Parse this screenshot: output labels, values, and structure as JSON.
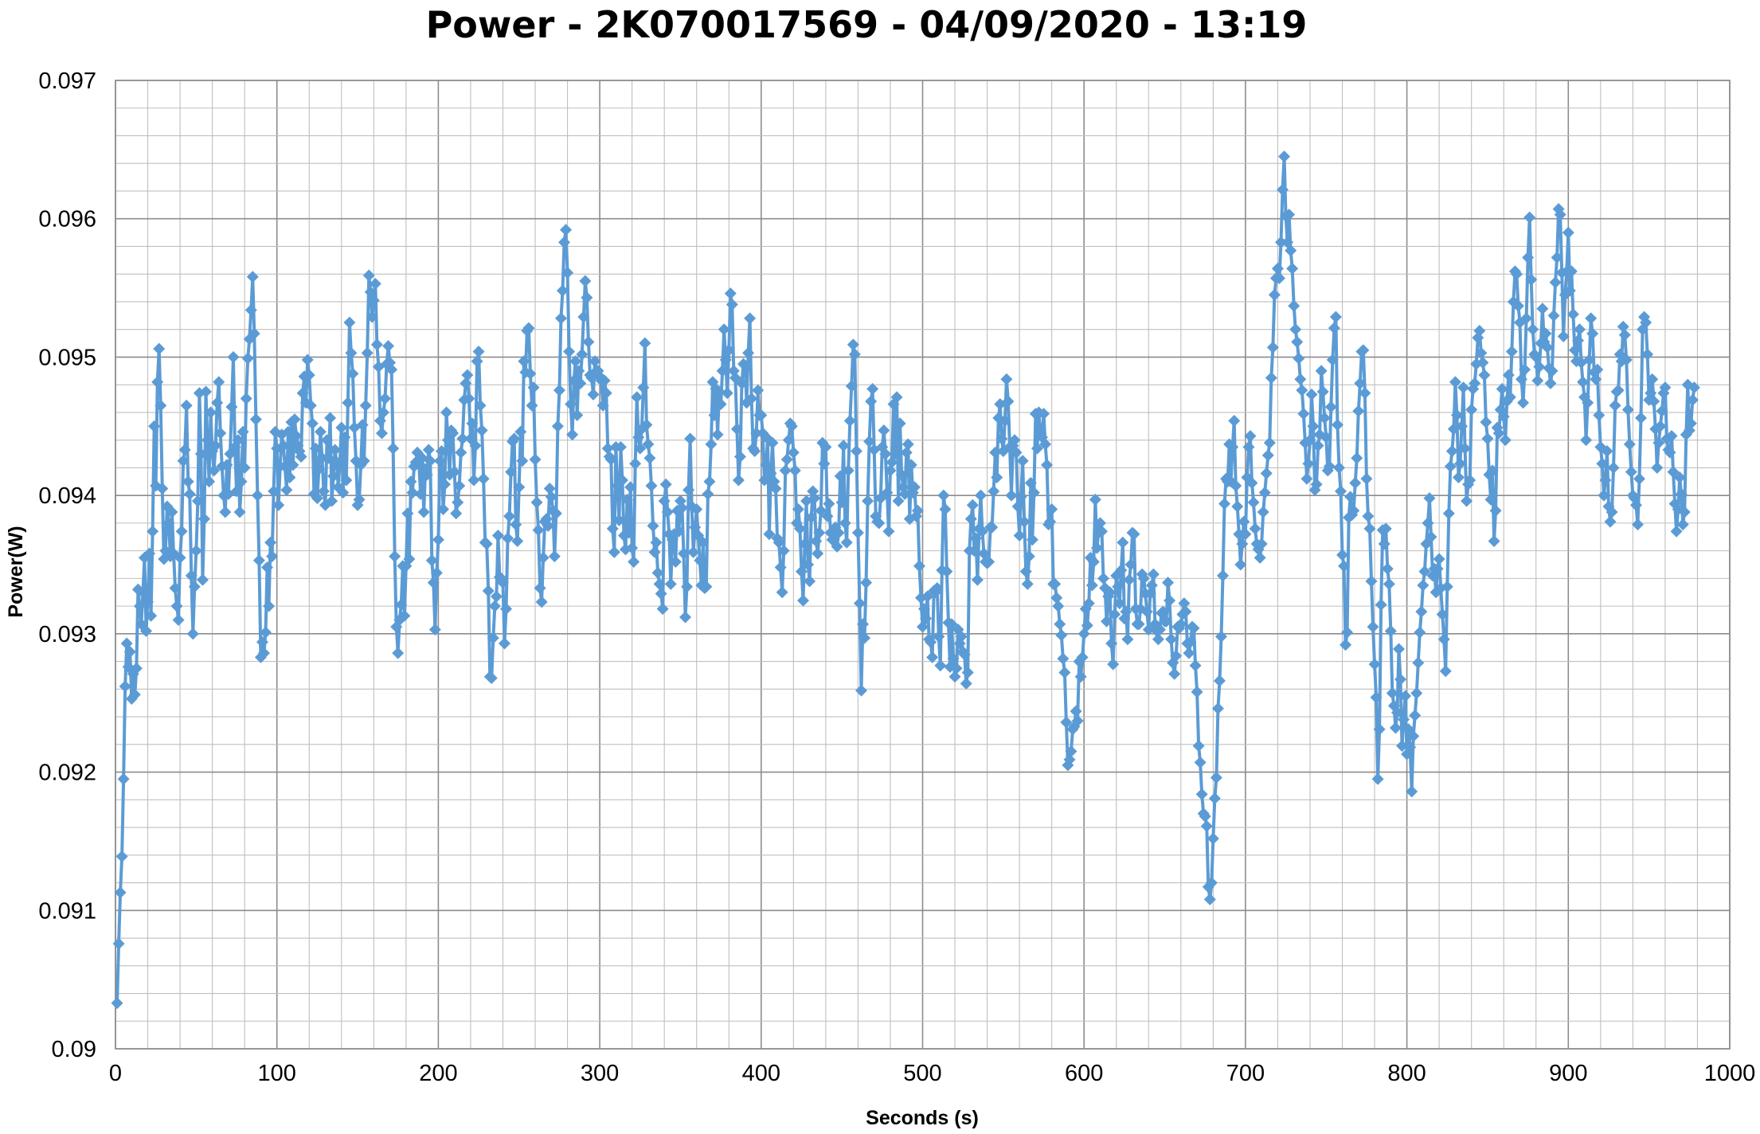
{
  "chart_data": {
    "type": "line",
    "title": "Power - 2K070017569 - 04/09/2020 - 13:19",
    "xlabel": "Seconds (s)",
    "ylabel": "Power(W)",
    "xlim": [
      0,
      1000
    ],
    "ylim": [
      0.09,
      0.097
    ],
    "x_ticks": [
      0,
      100,
      200,
      300,
      400,
      500,
      600,
      700,
      800,
      900,
      1000
    ],
    "y_ticks": [
      "0.09",
      "0.091",
      "0.092",
      "0.093",
      "0.094",
      "0.095",
      "0.096",
      "0.097"
    ],
    "x_step": 1,
    "x_start": 1,
    "grid": true,
    "marker": "diamond",
    "series_color": "#5b9bd5",
    "series": [
      {
        "name": "",
        "y": [
          0.09033,
          0.09076,
          0.09113,
          0.09139,
          0.09195,
          0.09262,
          0.09293,
          0.09276,
          0.09287,
          0.09253,
          0.09271,
          0.09256,
          0.09275,
          0.09332,
          0.0932,
          0.09307,
          0.0933,
          0.09355,
          0.09302,
          0.09323,
          0.09358,
          0.09313,
          0.09374,
          0.0945,
          0.09407,
          0.09482,
          0.09506,
          0.09465,
          0.09405,
          0.09354,
          0.0936,
          0.09392,
          0.0938,
          0.09356,
          0.09388,
          0.09358,
          0.09333,
          0.0932,
          0.0931,
          0.09355,
          0.09374,
          0.09425,
          0.09433,
          0.09465,
          0.0941,
          0.09401,
          0.09342,
          0.093,
          0.09334,
          0.0936,
          0.09396,
          0.09474,
          0.0943,
          0.09339,
          0.09383,
          0.09475,
          0.0944,
          0.0941,
          0.0946,
          0.09432,
          0.09418,
          0.09436,
          0.09467,
          0.09482,
          0.09445,
          0.09421,
          0.094,
          0.09388,
          0.09422,
          0.09401,
          0.0943,
          0.09464,
          0.095,
          0.09435,
          0.09403,
          0.0944,
          0.09388,
          0.0941,
          0.09446,
          0.0942,
          0.0947,
          0.09499,
          0.09513,
          0.09534,
          0.09558,
          0.09517,
          0.09455,
          0.094,
          0.09353,
          0.09283,
          0.09294,
          0.09286,
          0.09301,
          0.09348,
          0.0932,
          0.09366,
          0.09356,
          0.09403,
          0.09446,
          0.09434,
          0.09393,
          0.09421,
          0.09444,
          0.09436,
          0.09421,
          0.09404,
          0.09446,
          0.09413,
          0.09453,
          0.09422,
          0.09455,
          0.09443,
          0.09436,
          0.09432,
          0.09428,
          0.09474,
          0.09486,
          0.09467,
          0.09498,
          0.09487,
          0.09465,
          0.09452,
          0.09401,
          0.09434,
          0.09398,
          0.09419,
          0.09446,
          0.09427,
          0.09403,
          0.09393,
          0.0944,
          0.09427,
          0.09456,
          0.09396,
          0.09414,
          0.09433,
          0.09424,
          0.09406,
          0.09424,
          0.09449,
          0.09402,
          0.09442,
          0.09411,
          0.09467,
          0.09525,
          0.09503,
          0.09488,
          0.09449,
          0.09425,
          0.09393,
          0.09397,
          0.09422,
          0.09451,
          0.09425,
          0.09465,
          0.09503,
          0.09559,
          0.09547,
          0.09529,
          0.09541,
          0.09553,
          0.09509,
          0.09493,
          0.09454,
          0.09445,
          0.0946,
          0.0947,
          0.09495,
          0.09508,
          0.09496,
          0.09491,
          0.09434,
          0.09356,
          0.09305,
          0.09286,
          0.0931,
          0.09321,
          0.09349,
          0.09313,
          0.09349,
          0.09387,
          0.09354,
          0.0941,
          0.09402,
          0.09421,
          0.09424,
          0.09431,
          0.09423,
          0.09401,
          0.09427,
          0.09388,
          0.09419,
          0.09415,
          0.09433,
          0.09425,
          0.09353,
          0.09337,
          0.09303,
          0.09344,
          0.09368,
          0.09425,
          0.09432,
          0.0939,
          0.09408,
          0.0946,
          0.0944,
          0.09415,
          0.09447,
          0.09445,
          0.09417,
          0.09387,
          0.09395,
          0.09407,
          0.09431,
          0.09441,
          0.09469,
          0.09481,
          0.09487,
          0.0947,
          0.09441,
          0.09452,
          0.09411,
          0.09436,
          0.09497,
          0.09504,
          0.09465,
          0.09447,
          0.09412,
          0.09366,
          0.09365,
          0.09331,
          0.09269,
          0.09268,
          0.09297,
          0.0932,
          0.09327,
          0.09371,
          0.09341,
          0.0934,
          0.09337,
          0.09293,
          0.09318,
          0.09369,
          0.09385,
          0.09417,
          0.09439,
          0.09441,
          0.09379,
          0.09367,
          0.09406,
          0.09446,
          0.09425,
          0.09497,
          0.09489,
          0.09519,
          0.09521,
          0.09488,
          0.09465,
          0.09478,
          0.09426,
          0.09395,
          0.09375,
          0.09333,
          0.09323,
          0.09355,
          0.09381,
          0.09383,
          0.09378,
          0.09405,
          0.09399,
          0.09389,
          0.09356,
          0.09387,
          0.0945,
          0.09476,
          0.09528,
          0.09548,
          0.09583,
          0.09592,
          0.09561,
          0.09504,
          0.09466,
          0.09444,
          0.09483,
          0.09497,
          0.09458,
          0.0949,
          0.09481,
          0.09502,
          0.09529,
          0.09555,
          0.09543,
          0.09511,
          0.09487,
          0.09485,
          0.09473,
          0.09497,
          0.0949,
          0.0949,
          0.09486,
          0.09483,
          0.09465,
          0.09483,
          0.09474,
          0.09434,
          0.09428,
          0.09426,
          0.09376,
          0.09359,
          0.09435,
          0.09407,
          0.09382,
          0.09435,
          0.09411,
          0.09371,
          0.09361,
          0.09397,
          0.09373,
          0.09406,
          0.09362,
          0.09352,
          0.09423,
          0.09471,
          0.09442,
          0.09434,
          0.09448,
          0.09478,
          0.0951,
          0.09451,
          0.09437,
          0.09427,
          0.09407,
          0.09378,
          0.09359,
          0.09366,
          0.09344,
          0.09336,
          0.09329,
          0.09318,
          0.09396,
          0.09408,
          0.09388,
          0.09372,
          0.09336,
          0.09368,
          0.09372,
          0.09352,
          0.09389,
          0.09374,
          0.09396,
          0.09391,
          0.09358,
          0.09312,
          0.09334,
          0.09404,
          0.09441,
          0.09392,
          0.09359,
          0.09377,
          0.0939,
          0.09371,
          0.09353,
          0.09335,
          0.09366,
          0.09333,
          0.09334,
          0.09401,
          0.0941,
          0.09437,
          0.09482,
          0.09458,
          0.09477,
          0.09444,
          0.09475,
          0.09466,
          0.0949,
          0.0952,
          0.09498,
          0.09474,
          0.09505,
          0.09546,
          0.09538,
          0.0949,
          0.09485,
          0.09448,
          0.09411,
          0.09428,
          0.09481,
          0.09495,
          0.09494,
          0.09467,
          0.09503,
          0.09528,
          0.0947,
          0.09434,
          0.09432,
          0.09445,
          0.09476,
          0.09458,
          0.09458,
          0.09445,
          0.09411,
          0.09422,
          0.09441,
          0.09372,
          0.09416,
          0.09438,
          0.0941,
          0.09405,
          0.09369,
          0.09366,
          0.09348,
          0.0933,
          0.0936,
          0.09418,
          0.09426,
          0.0944,
          0.09452,
          0.0945,
          0.09431,
          0.09418,
          0.0938,
          0.0939,
          0.09376,
          0.09345,
          0.09324,
          0.09365,
          0.09396,
          0.0935,
          0.09338,
          0.09384,
          0.09403,
          0.09398,
          0.09367,
          0.09358,
          0.09373,
          0.09389,
          0.09438,
          0.09423,
          0.09435,
          0.09385,
          0.09394,
          0.09373,
          0.09368,
          0.09368,
          0.09377,
          0.09363,
          0.09373,
          0.09414,
          0.09395,
          0.09436,
          0.0938,
          0.09366,
          0.09418,
          0.09454,
          0.09479,
          0.09509,
          0.09502,
          0.09432,
          0.09373,
          0.09322,
          0.09259,
          0.09307,
          0.09297,
          0.09337,
          0.09396,
          0.09439,
          0.09468,
          0.09477,
          0.09433,
          0.09385,
          0.09381,
          0.0938,
          0.09398,
          0.09435,
          0.09447,
          0.0943,
          0.09402,
          0.09374,
          0.09418,
          0.09424,
          0.09466,
          0.0943,
          0.09471,
          0.09396,
          0.09452,
          0.09415,
          0.09406,
          0.09401,
          0.09431,
          0.09437,
          0.09383,
          0.09422,
          0.09402,
          0.09406,
          0.09385,
          0.09389,
          0.09349,
          0.09326,
          0.09305,
          0.09318,
          0.09311,
          0.09327,
          0.09296,
          0.09294,
          0.09283,
          0.09331,
          0.0933,
          0.09333,
          0.09298,
          0.09277,
          0.09346,
          0.094,
          0.0939,
          0.09345,
          0.09308,
          0.09276,
          0.09307,
          0.09282,
          0.09269,
          0.09275,
          0.09303,
          0.09293,
          0.09298,
          0.09287,
          0.09285,
          0.09264,
          0.09272,
          0.0936,
          0.09383,
          0.09393,
          0.0936,
          0.09369,
          0.09339,
          0.09376,
          0.094,
          0.09374,
          0.09358,
          0.09352,
          0.09351,
          0.09352,
          0.09377,
          0.09377,
          0.09403,
          0.09431,
          0.09413,
          0.09456,
          0.09466,
          0.09441,
          0.09432,
          0.09454,
          0.09484,
          0.09468,
          0.09435,
          0.094,
          0.09436,
          0.0944,
          0.09431,
          0.09392,
          0.09371,
          0.09399,
          0.09425,
          0.09381,
          0.09345,
          0.09336,
          0.09356,
          0.09409,
          0.09368,
          0.09402,
          0.09459,
          0.09434,
          0.0946,
          0.09445,
          0.09442,
          0.09459,
          0.09437,
          0.09422,
          0.09379,
          0.09381,
          0.0939,
          0.09336,
          0.09336,
          0.09326,
          0.0932,
          0.09307,
          0.09299,
          0.09282,
          0.09272,
          0.09236,
          0.09205,
          0.09209,
          0.09215,
          0.09231,
          0.09233,
          0.09244,
          0.09237,
          0.0928,
          0.09269,
          0.09283,
          0.093,
          0.09318,
          0.09306,
          0.09322,
          0.09355,
          0.09335,
          0.09352,
          0.09397,
          0.09362,
          0.09373,
          0.0938,
          0.09374,
          0.0934,
          0.09333,
          0.09309,
          0.09327,
          0.0933,
          0.09293,
          0.09278,
          0.09314,
          0.09342,
          0.09334,
          0.09322,
          0.09346,
          0.09366,
          0.09311,
          0.09316,
          0.09296,
          0.09339,
          0.0935,
          0.09373,
          0.09372,
          0.09318,
          0.09307,
          0.09307,
          0.09318,
          0.09343,
          0.0934,
          0.09329,
          0.09316,
          0.09303,
          0.09329,
          0.09335,
          0.09343,
          0.09307,
          0.09302,
          0.09296,
          0.09303,
          0.09315,
          0.09316,
          0.09309,
          0.09309,
          0.09337,
          0.09324,
          0.09296,
          0.09279,
          0.09271,
          0.09284,
          0.09305,
          0.09304,
          0.09307,
          0.09314,
          0.09322,
          0.09316,
          0.09293,
          0.09286,
          0.09294,
          0.09305,
          0.09304,
          0.09277,
          0.09258,
          0.09219,
          0.09207,
          0.09184,
          0.0917,
          0.09168,
          0.09161,
          0.09117,
          0.09108,
          0.0912,
          0.09152,
          0.09181,
          0.09196,
          0.09246,
          0.09266,
          0.09298,
          0.09342,
          0.09394,
          0.09412,
          0.0941,
          0.09437,
          0.0941,
          0.09435,
          0.09454,
          0.09407,
          0.09392,
          0.09372,
          0.0935,
          0.09365,
          0.09381,
          0.09372,
          0.09413,
          0.09435,
          0.09443,
          0.09409,
          0.09395,
          0.09376,
          0.09365,
          0.09361,
          0.09355,
          0.09365,
          0.09388,
          0.09402,
          0.09416,
          0.09429,
          0.09438,
          0.09485,
          0.09507,
          0.09545,
          0.09557,
          0.09564,
          0.09557,
          0.09583,
          0.09621,
          0.09645,
          0.09602,
          0.09583,
          0.09603,
          0.09577,
          0.09564,
          0.09537,
          0.0952,
          0.09511,
          0.09499,
          0.09484,
          0.09476,
          0.09459,
          0.09438,
          0.09412,
          0.09423,
          0.0944,
          0.09473,
          0.0945,
          0.09404,
          0.09408,
          0.09436,
          0.09444,
          0.0949,
          0.09475,
          0.09456,
          0.09442,
          0.09418,
          0.09421,
          0.09464,
          0.09498,
          0.09521,
          0.09529,
          0.09451,
          0.0942,
          0.09403,
          0.09357,
          0.09349,
          0.09292,
          0.09301,
          0.09384,
          0.09399,
          0.09386,
          0.09389,
          0.09409,
          0.09427,
          0.09461,
          0.09481,
          0.09504,
          0.09505,
          0.09474,
          0.09412,
          0.09385,
          0.09376,
          0.09338,
          0.09305,
          0.09278,
          0.09254,
          0.09195,
          0.09231,
          0.09321,
          0.09375,
          0.09365,
          0.09376,
          0.09347,
          0.09336,
          0.09302,
          0.09257,
          0.09248,
          0.09232,
          0.09243,
          0.09289,
          0.09267,
          0.09219,
          0.09238,
          0.09255,
          0.09213,
          0.09231,
          0.09218,
          0.09186,
          0.09226,
          0.09241,
          0.09257,
          0.09279,
          0.09301,
          0.09316,
          0.09335,
          0.09345,
          0.09365,
          0.0938,
          0.09398,
          0.0937,
          0.09342,
          0.09347,
          0.0933,
          0.09347,
          0.09354,
          0.09333,
          0.09314,
          0.09296,
          0.09273,
          0.09334,
          0.09387,
          0.09421,
          0.09432,
          0.09448,
          0.09482,
          0.09458,
          0.09413,
          0.09423,
          0.0945,
          0.09478,
          0.09434,
          0.09396,
          0.09408,
          0.09411,
          0.09462,
          0.09477,
          0.09481,
          0.09495,
          0.09514,
          0.09519,
          0.09503,
          0.09496,
          0.09487,
          0.09453,
          0.09441,
          0.09415,
          0.09397,
          0.09418,
          0.09367,
          0.09389,
          0.09449,
          0.09445,
          0.09462,
          0.09477,
          0.09457,
          0.0944,
          0.09468,
          0.09487,
          0.09471,
          0.09504,
          0.0954,
          0.09562,
          0.0956,
          0.09537,
          0.09525,
          0.09484,
          0.09467,
          0.09491,
          0.09528,
          0.09572,
          0.09601,
          0.09556,
          0.0952,
          0.09502,
          0.095,
          0.09483,
          0.09493,
          0.0951,
          0.09535,
          0.09511,
          0.09517,
          0.09507,
          0.09492,
          0.09481,
          0.0949,
          0.0953,
          0.09554,
          0.09572,
          0.09607,
          0.09603,
          0.09561,
          0.09515,
          0.09545,
          0.09562,
          0.0959,
          0.09548,
          0.09562,
          0.09531,
          0.09505,
          0.09497,
          0.09512,
          0.0952,
          0.09496,
          0.09482,
          0.09471,
          0.0944,
          0.09467,
          0.09498,
          0.09528,
          0.09517,
          0.09489,
          0.09484,
          0.09491,
          0.09458,
          0.09435,
          0.09423,
          0.094,
          0.09411,
          0.09432,
          0.09392,
          0.09381,
          0.09388,
          0.0942,
          0.09465,
          0.09475,
          0.09476,
          0.09502,
          0.09497,
          0.09522,
          0.09516,
          0.09498,
          0.09462,
          0.09437,
          0.09417,
          0.094,
          0.09398,
          0.09393,
          0.09379,
          0.09412,
          0.09456,
          0.0952,
          0.09529,
          0.09525,
          0.09502,
          0.09469,
          0.09474,
          0.09484,
          0.09468,
          0.09448,
          0.0942,
          0.09438,
          0.0945,
          0.09461,
          0.09474,
          0.09478,
          0.09441,
          0.09433,
          0.09431,
          0.09443,
          0.09417,
          0.09394,
          0.09374,
          0.0939,
          0.09413,
          0.09401,
          0.09379,
          0.09388,
          0.09444,
          0.0948,
          0.09447,
          0.09452,
          0.09469,
          0.09478
        ]
      }
    ]
  }
}
